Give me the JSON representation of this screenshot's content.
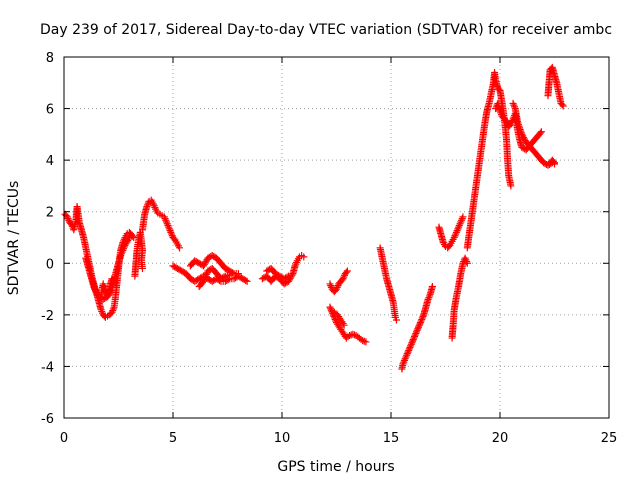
{
  "chart_data": {
    "type": "scatter",
    "title": "Day 239 of 2017, Sidereal Day-to-day VTEC variation (SDTVAR) for receiver ambc",
    "xlabel": "GPS time / hours",
    "ylabel": "SDTVAR / TECUs",
    "xlim": [
      0,
      25
    ],
    "ylim": [
      -6,
      8
    ],
    "xticks": [
      0,
      5,
      10,
      15,
      20,
      25
    ],
    "yticks": [
      -6,
      -4,
      -2,
      0,
      2,
      4,
      6,
      8
    ],
    "grid": true,
    "marker": "plus",
    "color": "#ff0000",
    "series": [
      {
        "segments": [
          [
            [
              0.05,
              1.9
            ],
            [
              0.15,
              1.8
            ],
            [
              0.25,
              1.6
            ],
            [
              0.35,
              1.5
            ],
            [
              0.45,
              1.3
            ],
            [
              0.55,
              1.7
            ],
            [
              0.6,
              2.2
            ],
            [
              0.7,
              1.6
            ],
            [
              0.8,
              1.3
            ],
            [
              0.9,
              1.0
            ],
            [
              1.0,
              0.6
            ],
            [
              1.1,
              0.2
            ],
            [
              1.2,
              -0.2
            ],
            [
              1.3,
              -0.6
            ],
            [
              1.4,
              -0.9
            ],
            [
              1.5,
              -1.2
            ],
            [
              1.6,
              -1.5
            ],
            [
              1.7,
              -1.8
            ],
            [
              1.8,
              -2.0
            ],
            [
              1.9,
              -2.1
            ],
            [
              2.0,
              -2.05
            ],
            [
              2.1,
              -2.0
            ],
            [
              2.2,
              -1.9
            ],
            [
              2.3,
              -1.7
            ],
            [
              2.35,
              -1.4
            ],
            [
              2.4,
              -1.0
            ],
            [
              2.45,
              -0.6
            ],
            [
              2.5,
              -0.2
            ],
            [
              2.55,
              0.2
            ],
            [
              2.6,
              0.5
            ],
            [
              2.7,
              0.8
            ],
            [
              2.8,
              1.0
            ],
            [
              2.9,
              1.15
            ],
            [
              3.0,
              1.2
            ],
            [
              3.1,
              1.1
            ],
            [
              3.2,
              1.0
            ]
          ],
          [
            [
              1.0,
              0.2
            ],
            [
              1.2,
              -0.4
            ],
            [
              1.4,
              -1.0
            ],
            [
              1.6,
              -1.3
            ],
            [
              1.8,
              -1.4
            ],
            [
              2.0,
              -1.3
            ],
            [
              2.2,
              -1.0
            ],
            [
              2.4,
              -0.3
            ],
            [
              2.6,
              0.3
            ],
            [
              2.8,
              0.7
            ],
            [
              3.0,
              1.0
            ]
          ],
          [
            [
              1.7,
              -1.4
            ],
            [
              1.75,
              -1.0
            ],
            [
              1.8,
              -0.8
            ],
            [
              1.85,
              -0.9
            ],
            [
              1.9,
              -1.1
            ],
            [
              2.0,
              -1.2
            ],
            [
              2.1,
              -0.9
            ],
            [
              2.2,
              -0.6
            ],
            [
              2.3,
              -0.7
            ],
            [
              2.4,
              -0.8
            ]
          ],
          [
            [
              3.25,
              -0.5
            ],
            [
              3.3,
              0.0
            ],
            [
              3.35,
              0.5
            ],
            [
              3.4,
              0.8
            ],
            [
              3.45,
              1.0
            ],
            [
              3.5,
              1.2
            ],
            [
              3.55,
              0.9
            ],
            [
              3.6,
              0.5
            ],
            [
              3.55,
              0.1
            ],
            [
              3.6,
              -0.2
            ]
          ],
          [
            [
              3.6,
              1.3
            ],
            [
              3.7,
              1.9
            ],
            [
              3.8,
              2.2
            ],
            [
              3.9,
              2.4
            ],
            [
              4.0,
              2.45
            ],
            [
              4.1,
              2.3
            ],
            [
              4.2,
              2.1
            ],
            [
              4.3,
              1.95
            ],
            [
              4.4,
              1.9
            ],
            [
              4.5,
              1.85
            ],
            [
              4.6,
              1.8
            ],
            [
              4.7,
              1.6
            ],
            [
              4.8,
              1.4
            ],
            [
              4.9,
              1.2
            ],
            [
              5.0,
              1.0
            ],
            [
              5.1,
              0.9
            ],
            [
              5.2,
              0.75
            ],
            [
              5.3,
              0.6
            ]
          ],
          [
            [
              5.0,
              -0.1
            ],
            [
              5.2,
              -0.2
            ],
            [
              5.4,
              -0.3
            ],
            [
              5.6,
              -0.4
            ],
            [
              5.8,
              -0.6
            ],
            [
              6.0,
              -0.7
            ],
            [
              6.2,
              -0.6
            ],
            [
              6.4,
              -0.5
            ],
            [
              6.6,
              -0.6
            ],
            [
              6.8,
              -0.7
            ],
            [
              7.0,
              -0.6
            ],
            [
              7.2,
              -0.7
            ],
            [
              7.4,
              -0.7
            ],
            [
              7.6,
              -0.6
            ],
            [
              7.8,
              -0.6
            ],
            [
              8.0,
              -0.5
            ],
            [
              8.2,
              -0.6
            ],
            [
              8.4,
              -0.7
            ]
          ],
          [
            [
              5.8,
              -0.1
            ],
            [
              6.0,
              0.1
            ],
            [
              6.2,
              0.0
            ],
            [
              6.4,
              -0.1
            ],
            [
              6.6,
              0.2
            ],
            [
              6.8,
              0.3
            ],
            [
              7.0,
              0.2
            ],
            [
              7.2,
              0.0
            ],
            [
              7.4,
              -0.2
            ],
            [
              7.6,
              -0.3
            ],
            [
              7.8,
              -0.4
            ],
            [
              8.0,
              -0.4
            ]
          ],
          [
            [
              6.2,
              -0.9
            ],
            [
              6.4,
              -0.7
            ],
            [
              6.6,
              -0.3
            ],
            [
              6.8,
              -0.2
            ],
            [
              7.0,
              -0.4
            ],
            [
              7.2,
              -0.6
            ],
            [
              7.4,
              -0.5
            ],
            [
              7.6,
              -0.45
            ]
          ],
          [
            [
              9.1,
              -0.6
            ],
            [
              9.3,
              -0.5
            ],
            [
              9.5,
              -0.7
            ],
            [
              9.7,
              -0.5
            ],
            [
              9.9,
              -0.6
            ],
            [
              10.1,
              -0.8
            ],
            [
              10.3,
              -0.7
            ],
            [
              10.5,
              -0.4
            ],
            [
              10.6,
              -0.1
            ],
            [
              10.7,
              0.1
            ],
            [
              10.8,
              0.25
            ],
            [
              10.9,
              0.3
            ],
            [
              11.0,
              0.25
            ]
          ],
          [
            [
              9.3,
              -0.3
            ],
            [
              9.5,
              -0.2
            ],
            [
              9.7,
              -0.4
            ],
            [
              9.9,
              -0.5
            ],
            [
              10.1,
              -0.6
            ],
            [
              10.3,
              -0.5
            ]
          ],
          [
            [
              12.2,
              -0.8
            ],
            [
              12.3,
              -1.0
            ],
            [
              12.4,
              -1.1
            ],
            [
              12.5,
              -1.0
            ],
            [
              12.6,
              -0.8
            ],
            [
              12.7,
              -0.7
            ],
            [
              12.8,
              -0.6
            ],
            [
              12.9,
              -0.4
            ],
            [
              13.0,
              -0.3
            ]
          ],
          [
            [
              12.2,
              -1.7
            ],
            [
              12.35,
              -2.0
            ],
            [
              12.5,
              -2.3
            ],
            [
              12.65,
              -2.5
            ],
            [
              12.8,
              -2.7
            ],
            [
              12.95,
              -2.9
            ],
            [
              13.1,
              -2.8
            ],
            [
              13.25,
              -2.75
            ],
            [
              13.4,
              -2.8
            ],
            [
              13.55,
              -2.9
            ],
            [
              13.7,
              -3.0
            ],
            [
              13.85,
              -3.05
            ]
          ],
          [
            [
              12.4,
              -1.9
            ],
            [
              12.55,
              -2.0
            ],
            [
              12.7,
              -2.2
            ],
            [
              12.85,
              -2.4
            ]
          ],
          [
            [
              14.5,
              0.6
            ],
            [
              14.6,
              0.2
            ],
            [
              14.7,
              -0.2
            ],
            [
              14.8,
              -0.6
            ],
            [
              14.9,
              -0.9
            ],
            [
              15.0,
              -1.2
            ],
            [
              15.1,
              -1.5
            ],
            [
              15.15,
              -1.8
            ],
            [
              15.2,
              -2.1
            ],
            [
              15.25,
              -2.2
            ]
          ],
          [
            [
              15.5,
              -4.1
            ],
            [
              15.55,
              -3.9
            ],
            [
              15.65,
              -3.7
            ],
            [
              15.75,
              -3.5
            ],
            [
              15.9,
              -3.2
            ],
            [
              16.05,
              -2.9
            ],
            [
              16.2,
              -2.6
            ],
            [
              16.35,
              -2.3
            ],
            [
              16.5,
              -2.0
            ],
            [
              16.6,
              -1.7
            ],
            [
              16.7,
              -1.4
            ],
            [
              16.8,
              -1.2
            ],
            [
              16.9,
              -0.9
            ]
          ],
          [
            [
              17.2,
              1.4
            ],
            [
              17.3,
              1.1
            ],
            [
              17.4,
              0.8
            ],
            [
              17.5,
              0.65
            ],
            [
              17.6,
              0.6
            ],
            [
              17.7,
              0.7
            ],
            [
              17.8,
              0.85
            ],
            [
              17.9,
              1.0
            ],
            [
              18.0,
              1.2
            ],
            [
              18.1,
              1.4
            ],
            [
              18.2,
              1.6
            ],
            [
              18.3,
              1.8
            ]
          ],
          [
            [
              17.8,
              -2.9
            ],
            [
              17.85,
              -2.4
            ],
            [
              17.9,
              -1.8
            ],
            [
              18.0,
              -1.3
            ],
            [
              18.1,
              -0.9
            ],
            [
              18.2,
              -0.4
            ],
            [
              18.3,
              0.0
            ],
            [
              18.4,
              0.2
            ],
            [
              18.5,
              0.0
            ]
          ],
          [
            [
              18.5,
              0.6
            ],
            [
              18.6,
              1.2
            ],
            [
              18.7,
              1.8
            ],
            [
              18.8,
              2.4
            ],
            [
              18.9,
              3.0
            ],
            [
              19.0,
              3.6
            ],
            [
              19.1,
              4.2
            ],
            [
              19.2,
              4.8
            ],
            [
              19.3,
              5.4
            ],
            [
              19.4,
              5.9
            ],
            [
              19.5,
              6.2
            ],
            [
              19.6,
              6.6
            ],
            [
              19.7,
              7.0
            ],
            [
              19.75,
              7.4
            ],
            [
              19.8,
              7.1
            ],
            [
              19.9,
              6.8
            ],
            [
              20.0,
              6.7
            ],
            [
              20.1,
              6.2
            ],
            [
              20.2,
              5.6
            ],
            [
              20.3,
              4.8
            ],
            [
              20.35,
              4.0
            ],
            [
              20.4,
              3.4
            ],
            [
              20.5,
              3.0
            ]
          ],
          [
            [
              19.8,
              6.0
            ],
            [
              19.9,
              6.2
            ],
            [
              20.0,
              5.9
            ],
            [
              20.1,
              5.7
            ],
            [
              20.2,
              5.6
            ],
            [
              20.3,
              5.5
            ],
            [
              20.4,
              5.3
            ],
            [
              20.5,
              5.4
            ],
            [
              20.6,
              5.6
            ],
            [
              20.7,
              5.8
            ],
            [
              20.8,
              5.2
            ],
            [
              20.9,
              4.8
            ],
            [
              21.0,
              4.5
            ],
            [
              21.2,
              4.4
            ],
            [
              21.4,
              4.6
            ],
            [
              21.6,
              4.8
            ],
            [
              21.8,
              5.0
            ],
            [
              21.9,
              5.1
            ]
          ],
          [
            [
              20.6,
              6.2
            ],
            [
              20.7,
              6.0
            ],
            [
              20.8,
              5.5
            ],
            [
              21.0,
              5.0
            ],
            [
              21.2,
              4.7
            ],
            [
              21.4,
              4.5
            ],
            [
              21.6,
              4.3
            ],
            [
              21.8,
              4.1
            ],
            [
              22.0,
              3.9
            ],
            [
              22.2,
              3.8
            ],
            [
              22.4,
              3.9
            ],
            [
              22.5,
              3.85
            ]
          ],
          [
            [
              22.2,
              6.5
            ],
            [
              22.3,
              7.5
            ],
            [
              22.4,
              7.6
            ],
            [
              22.5,
              7.3
            ],
            [
              22.6,
              7.0
            ],
            [
              22.7,
              6.6
            ],
            [
              22.8,
              6.2
            ],
            [
              22.9,
              6.1
            ]
          ],
          [
            [
              22.3,
              3.9
            ],
            [
              22.4,
              4.0
            ],
            [
              22.5,
              3.9
            ]
          ]
        ]
      }
    ]
  }
}
